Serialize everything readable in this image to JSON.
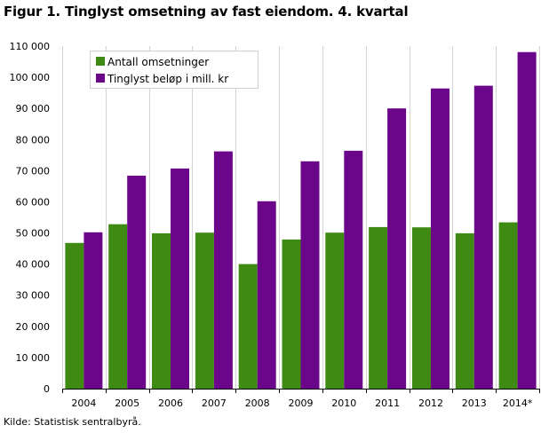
{
  "chart_data": {
    "type": "bar",
    "title": "Figur 1. Tinglyst omsetning av fast eiendom. 4. kvartal",
    "xlabel": "",
    "ylabel": "",
    "ylim": [
      0,
      110000
    ],
    "yticks": [
      0,
      10000,
      20000,
      30000,
      40000,
      50000,
      60000,
      70000,
      80000,
      90000,
      100000,
      110000
    ],
    "ytick_labels": [
      "0",
      "10 000",
      "20 000",
      "30 000",
      "40 000",
      "50 000",
      "60 000",
      "70 000",
      "80 000",
      "90 000",
      "100 000",
      "110 000"
    ],
    "grid": "vertical",
    "legend_position": "top-left",
    "categories": [
      "2004",
      "2005",
      "2006",
      "2007",
      "2008",
      "2009",
      "2010",
      "2011",
      "2012",
      "2013",
      "2014*"
    ],
    "series": [
      {
        "name": "Antall omsetninger",
        "color": "#3f8a13",
        "values": [
          46800,
          52800,
          49900,
          50100,
          40000,
          47900,
          50100,
          51900,
          51800,
          49900,
          53400
        ]
      },
      {
        "name": "Tinglyst beløp i mill. kr",
        "color": "#6b068b",
        "values": [
          50200,
          68400,
          70700,
          76200,
          60200,
          73000,
          76400,
          90000,
          96400,
          97300,
          108100
        ]
      }
    ]
  },
  "source": "Kilde: Statistisk sentralbyrå."
}
